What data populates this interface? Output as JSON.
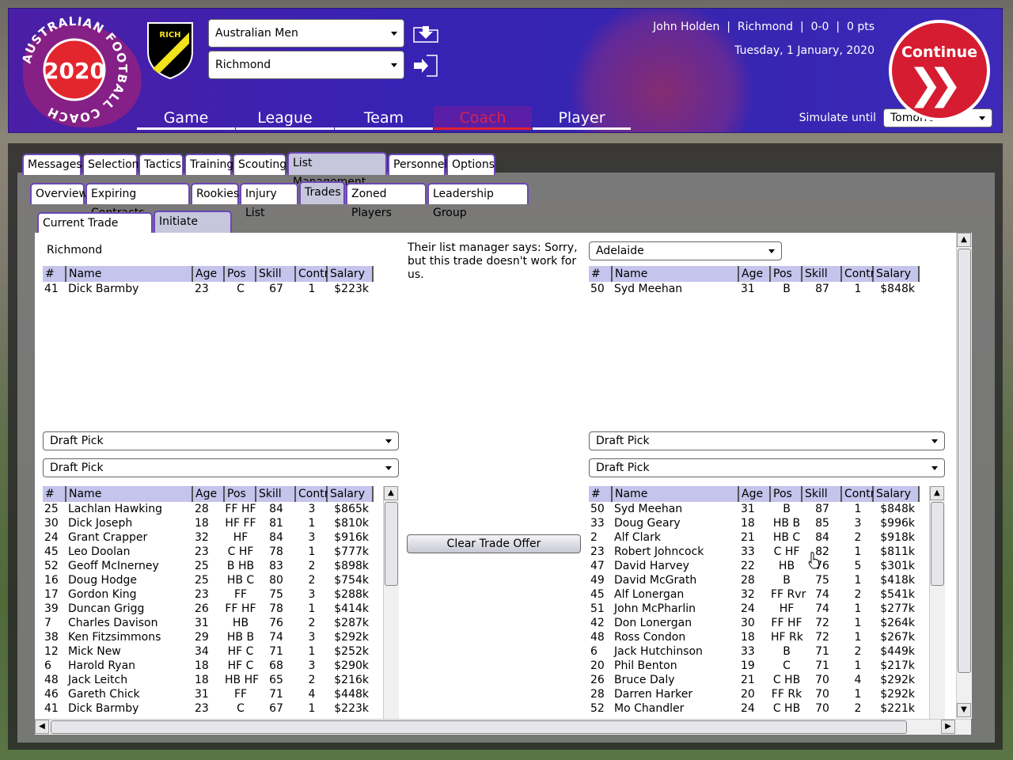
{
  "header": {
    "game_logo_title": "AUSTRALIAN FOOTBALL COACH",
    "game_logo_year": "2020",
    "club_logo_text": "RICH",
    "competition_select": "Australian Men",
    "team_select": "Richmond",
    "nav": [
      "Game",
      "League",
      "Team",
      "Coach",
      "Player"
    ],
    "manager_info": "John Holden  |  Richmond  |  0-0  |  0 pts",
    "date": "Tuesday, 1 January, 2020",
    "continue_label": "Continue",
    "simulate_label": "Simulate until",
    "simulate_value": "Tomorrow"
  },
  "tabs_main": [
    "Messages",
    "Selection",
    "Tactics",
    "Training",
    "Scouting",
    "List Management",
    "Personnel",
    "Options"
  ],
  "tabs_list": [
    "Overview",
    "Expiring Contracts",
    "Rookies",
    "Injury List",
    "Trades",
    "Zoned Players",
    "Leadership Group"
  ],
  "tabs_trade": [
    "Current Trade Offers",
    "Initiate Trade"
  ],
  "trade": {
    "left_team": "Richmond",
    "message": "Their list manager says: Sorry, but this trade doesn't work for us.",
    "right_team_select": "Adelaide",
    "columns": [
      "#",
      "Name",
      "Age",
      "Pos",
      "Skill",
      "Contr",
      "Salary"
    ],
    "left_offer": [
      [
        "41",
        "Dick Barmby",
        "23",
        "C",
        "67",
        "1",
        "$223k"
      ]
    ],
    "right_offer": [
      [
        "50",
        "Syd Meehan",
        "31",
        "B",
        "87",
        "1",
        "$848k"
      ]
    ],
    "draft_pick_label": "Draft Pick",
    "clear_button": "Clear Trade Offer",
    "left_list": [
      [
        "25",
        "Lachlan Hawking",
        "28",
        "FF HF",
        "84",
        "3",
        "$865k"
      ],
      [
        "30",
        "Dick Joseph",
        "18",
        "HF FF",
        "81",
        "1",
        "$810k"
      ],
      [
        "24",
        "Grant Crapper",
        "32",
        "HF",
        "84",
        "3",
        "$916k"
      ],
      [
        "45",
        "Leo Doolan",
        "23",
        "C HF",
        "78",
        "1",
        "$777k"
      ],
      [
        "52",
        "Geoff McInerney",
        "25",
        "B HB",
        "83",
        "2",
        "$898k"
      ],
      [
        "16",
        "Doug Hodge",
        "25",
        "HB C",
        "80",
        "2",
        "$754k"
      ],
      [
        "17",
        "Gordon King",
        "23",
        "FF",
        "75",
        "3",
        "$288k"
      ],
      [
        "39",
        "Duncan Grigg",
        "26",
        "FF HF",
        "78",
        "1",
        "$414k"
      ],
      [
        "7",
        "Charles Davison",
        "31",
        "HB",
        "76",
        "2",
        "$287k"
      ],
      [
        "38",
        "Ken Fitzsimmons",
        "29",
        "HB B",
        "74",
        "3",
        "$292k"
      ],
      [
        "12",
        "Mick New",
        "34",
        "HF C",
        "71",
        "1",
        "$252k"
      ],
      [
        "6",
        "Harold Ryan",
        "18",
        "HF C",
        "68",
        "3",
        "$290k"
      ],
      [
        "48",
        "Jack Leitch",
        "18",
        "HB HF",
        "65",
        "2",
        "$216k"
      ],
      [
        "46",
        "Gareth Chick",
        "31",
        "FF",
        "71",
        "4",
        "$448k"
      ],
      [
        "41",
        "Dick Barmby",
        "23",
        "C",
        "67",
        "1",
        "$223k"
      ]
    ],
    "right_list": [
      [
        "50",
        "Syd Meehan",
        "31",
        "B",
        "87",
        "1",
        "$848k"
      ],
      [
        "33",
        "Doug Geary",
        "18",
        "HB B",
        "85",
        "3",
        "$996k"
      ],
      [
        "2",
        "Alf Clark",
        "21",
        "HB C",
        "84",
        "2",
        "$918k"
      ],
      [
        "23",
        "Robert Johncock",
        "33",
        "C HF",
        "82",
        "1",
        "$811k"
      ],
      [
        "47",
        "David Harvey",
        "22",
        "HB",
        "76",
        "5",
        "$301k"
      ],
      [
        "49",
        "David McGrath",
        "28",
        "B",
        "75",
        "1",
        "$418k"
      ],
      [
        "45",
        "Alf Lonergan",
        "32",
        "FF Rvr",
        "74",
        "2",
        "$541k"
      ],
      [
        "51",
        "John McPharlin",
        "24",
        "HF",
        "74",
        "1",
        "$277k"
      ],
      [
        "42",
        "Don Lonergan",
        "30",
        "FF HF",
        "72",
        "1",
        "$264k"
      ],
      [
        "48",
        "Ross Condon",
        "18",
        "HF Rk",
        "72",
        "1",
        "$267k"
      ],
      [
        "6",
        "Jack Hutchinson",
        "33",
        "B",
        "71",
        "2",
        "$449k"
      ],
      [
        "20",
        "Phil Benton",
        "19",
        "C",
        "71",
        "1",
        "$217k"
      ],
      [
        "26",
        "Bruce Daly",
        "21",
        "C HB",
        "70",
        "4",
        "$292k"
      ],
      [
        "28",
        "Darren Harker",
        "20",
        "FF Rk",
        "70",
        "1",
        "$292k"
      ],
      [
        "52",
        "Mo Chandler",
        "24",
        "C HB",
        "70",
        "2",
        "$221k"
      ]
    ]
  },
  "colors": {
    "header_bg": "#3a24b2",
    "accent_red": "#d51c30",
    "table_header": "#c4c4ec",
    "tab_border": "#6a48b6"
  },
  "icons": [
    "download-folder-icon",
    "exit-door-icon",
    "continue-chevrons-icon",
    "dropdown-arrow-icon",
    "scroll-up-icon",
    "scroll-down-icon",
    "scroll-left-icon",
    "scroll-right-icon",
    "mouse-cursor-icon"
  ]
}
